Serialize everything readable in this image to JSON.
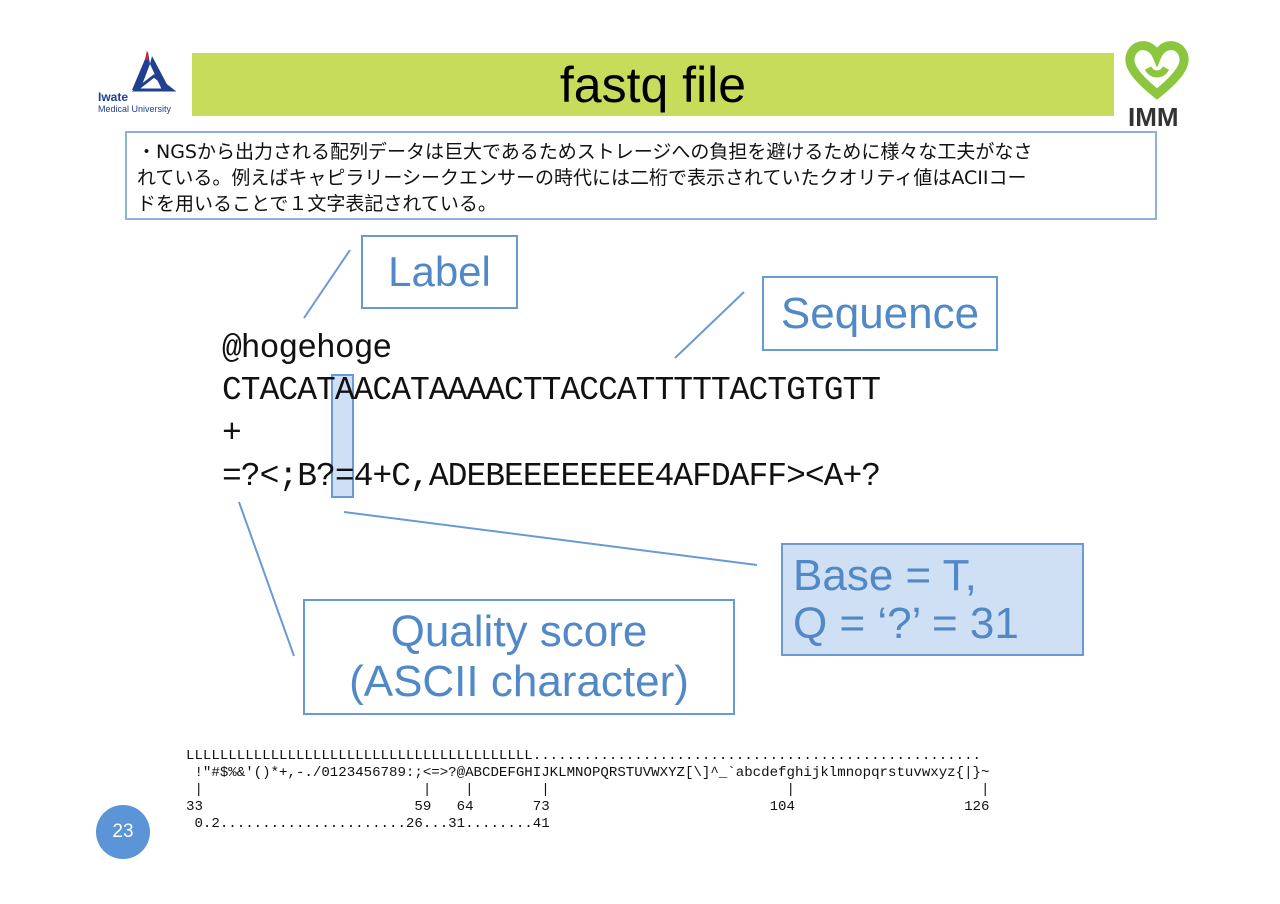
{
  "header": {
    "logo_left_line1": "Iwate",
    "logo_left_line2": "Medical University",
    "title": "fastq file",
    "logo_right": "IMM"
  },
  "description": {
    "line1": "・NGSから出力される配列データは巨大であるためストレージへの負担を避けるために様々な工夫がなさ",
    "line2": "れている。例えばキャピラリーシークエンサーの時代には二桁で表示されていたクオリティ値はACIIコー",
    "line3": "ドを用いることで１文字表記されている。"
  },
  "callouts": {
    "label": "Label",
    "sequence": "Sequence",
    "quality_line1": "Quality score",
    "quality_line2": "(ASCII character)",
    "base_line1": "Base = T,",
    "base_line2": "Q = ‘?’ = 31"
  },
  "fastq": {
    "line1": "@hogehoge",
    "line2": "CTACATAACATAAAACTTACCATTTTTACTGTGTT",
    "line3": "+",
    "line4": "=?<;B?=4+C,ADEBEEEEEEEE4AFDAFF><A+?"
  },
  "ascii_table": {
    "row1": "LLLLLLLLLLLLLLLLLLLLLLLLLLLLLLLLLLLLLLLLL.....................................................",
    "row2": " !\"#$%&'()*+,-./0123456789:;<=>?@ABCDEFGHIJKLMNOPQRSTUVWXYZ[\\]^_`abcdefghijklmnopqrstuvwxyz{|}~",
    "row3": " |                          |    |        |                            |                      |",
    "row4": "33                         59   64       73                          104                    126",
    "row5": " 0.2......................26...31........41"
  },
  "page_number": "23",
  "colors": {
    "title_bar": "#c7dc5a",
    "callout_border": "#6a9ad3",
    "callout_text": "#5088c8",
    "highlight_fill": "#cfe0f4",
    "page_badge": "#5b95d8"
  }
}
